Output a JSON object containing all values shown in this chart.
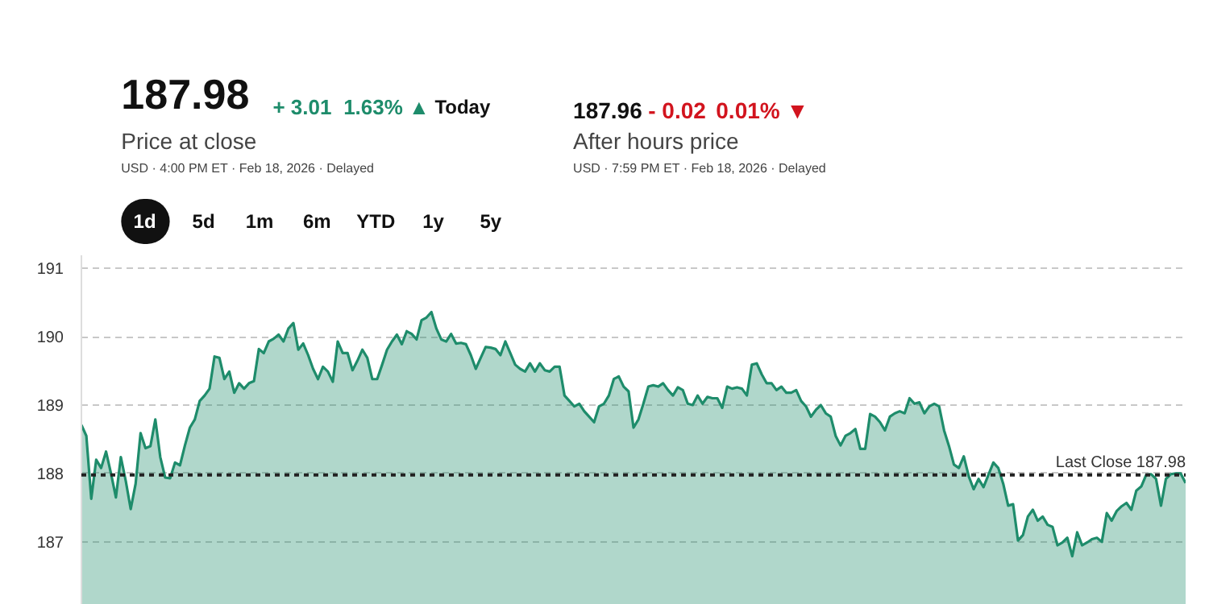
{
  "chart_data": {
    "type": "area",
    "annotations": [
      "187.98",
      "+ 3.01",
      "1.63% ▲",
      "Today",
      "Price at close",
      "USD · 4:00 PM ET · Feb 18, 2026 · Delayed",
      "187.96",
      "- 0.02",
      "0.01% ▼",
      "After hours price",
      "USD · 7:59 PM ET · Feb 18, 2026 · Delayed",
      "1d",
      "5d",
      "1m",
      "6m",
      "YTD",
      "1y",
      "5y"
    ],
    "categories": [
      null,
      null,
      null,
      null,
      null,
      null,
      null,
      null,
      null,
      null,
      null,
      null,
      null,
      null,
      null,
      null,
      null,
      null,
      null,
      null,
      null,
      null,
      null,
      null,
      null,
      null,
      null,
      null,
      null,
      null,
      null,
      null,
      null,
      null,
      null,
      null,
      null,
      null,
      null,
      null,
      null,
      null,
      null,
      null,
      null,
      null,
      null,
      null,
      null,
      null,
      null,
      null,
      null,
      null,
      null,
      null,
      null,
      null,
      null,
      null,
      null,
      null,
      null,
      null,
      null,
      null,
      null,
      null,
      null,
      null,
      null,
      null,
      null,
      null,
      null,
      null,
      null,
      null,
      null,
      null,
      null,
      null,
      null,
      null,
      null,
      null,
      null,
      null,
      null,
      null,
      null,
      null,
      null,
      null,
      null,
      null,
      null,
      null,
      null,
      null,
      null,
      null,
      null,
      null,
      null,
      null,
      null,
      null,
      null,
      null,
      null,
      null,
      null,
      null,
      null,
      null,
      null,
      null,
      null,
      null,
      null,
      null,
      null,
      null,
      null,
      null,
      null,
      null,
      null,
      null,
      null,
      null,
      null,
      null,
      null,
      null,
      null,
      null,
      null,
      null,
      null,
      null,
      null,
      null,
      null,
      null,
      null,
      null,
      null,
      null,
      null,
      null,
      null,
      null,
      null,
      null,
      null,
      null,
      null,
      null,
      null,
      null,
      null,
      null,
      null,
      null,
      null,
      null,
      null,
      null,
      null,
      null,
      null,
      null,
      null,
      null,
      null,
      null,
      null,
      null,
      null,
      null,
      null,
      null,
      null,
      null,
      null,
      null,
      null,
      null,
      null,
      null,
      null,
      null,
      null,
      null,
      null,
      null,
      null,
      null,
      null,
      null,
      null,
      null,
      null,
      null,
      null,
      null,
      null,
      null,
      null,
      null,
      null,
      null,
      null,
      null,
      null,
      null,
      null,
      null,
      null,
      null,
      null,
      null,
      null
    ],
    "series": [
      {
        "color": "#1e8c6b",
        "values": [
          188.71,
          188.55,
          187.63,
          188.2,
          188.08,
          188.32,
          188.0,
          187.65,
          188.24,
          187.89,
          187.48,
          187.85,
          188.59,
          188.37,
          188.4,
          188.79,
          188.24,
          187.94,
          187.93,
          188.16,
          188.12,
          188.41,
          188.67,
          188.79,
          189.06,
          189.14,
          189.24,
          189.71,
          189.69,
          189.38,
          189.49,
          189.18,
          189.32,
          189.24,
          189.32,
          189.35,
          189.82,
          189.76,
          189.93,
          189.97,
          190.03,
          189.93,
          190.12,
          190.2,
          189.81,
          189.9,
          189.73,
          189.53,
          189.38,
          189.56,
          189.49,
          189.34,
          189.93,
          189.76,
          189.76,
          189.51,
          189.65,
          189.81,
          189.69,
          189.38,
          189.38,
          189.59,
          189.81,
          189.93,
          190.03,
          189.89,
          190.08,
          190.04,
          189.96,
          190.24,
          190.28,
          190.36,
          190.12,
          189.96,
          189.93,
          190.04,
          189.9,
          189.91,
          189.89,
          189.73,
          189.53,
          189.69,
          189.85,
          189.84,
          189.82,
          189.73,
          189.93,
          189.76,
          189.59,
          189.53,
          189.49,
          189.61,
          189.49,
          189.61,
          189.51,
          189.49,
          189.56,
          189.56,
          189.14,
          189.06,
          188.98,
          189.02,
          188.91,
          188.83,
          188.75,
          188.98,
          189.02,
          189.14,
          189.38,
          189.42,
          189.27,
          189.2,
          188.67,
          188.79,
          189.02,
          189.27,
          189.29,
          189.27,
          189.32,
          189.22,
          189.14,
          189.26,
          189.22,
          189.02,
          189.0,
          189.14,
          189.02,
          189.12,
          189.1,
          189.1,
          188.96,
          189.27,
          189.24,
          189.26,
          189.24,
          189.14,
          189.59,
          189.61,
          189.45,
          189.32,
          189.32,
          189.22,
          189.27,
          189.18,
          189.18,
          189.22,
          189.06,
          188.98,
          188.83,
          188.93,
          189.0,
          188.88,
          188.83,
          188.55,
          188.41,
          188.55,
          188.59,
          188.65,
          188.36,
          188.36,
          188.87,
          188.83,
          188.75,
          188.63,
          188.83,
          188.88,
          188.91,
          188.88,
          189.1,
          189.02,
          189.04,
          188.88,
          188.98,
          189.02,
          188.98,
          188.63,
          188.4,
          188.13,
          188.08,
          188.25,
          187.96,
          187.77,
          187.92,
          187.8,
          187.98,
          188.16,
          188.08,
          187.85,
          187.53,
          187.55,
          187.02,
          187.1,
          187.37,
          187.47,
          187.31,
          187.37,
          187.25,
          187.22,
          186.95,
          186.99,
          187.06,
          186.79,
          187.14,
          186.95,
          186.99,
          187.04,
          187.06,
          187.0,
          187.42,
          187.31,
          187.45,
          187.52,
          187.57,
          187.47,
          187.75,
          187.81,
          187.98,
          187.99,
          187.92,
          187.53,
          187.92,
          187.99,
          188.0,
          188.0,
          187.86
        ]
      }
    ],
    "ylim": [
      186.08,
      191.19
    ],
    "yticks": [
      187,
      188,
      189,
      190,
      191
    ],
    "grid": "y",
    "ref_lines": [
      {
        "axis": "y",
        "value": 187.98,
        "label": "Last Close 187.98",
        "color": "#222222",
        "line_style": "dotted"
      }
    ]
  }
}
